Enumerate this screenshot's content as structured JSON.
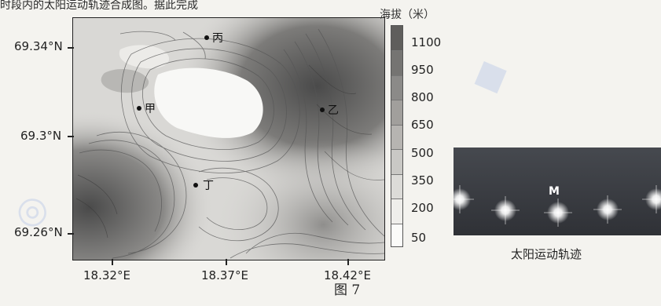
{
  "header_text": "时段内的太阳运动轨迹合成图。据此完成",
  "map": {
    "lat_labels": [
      "69.34°N",
      "69.3°N",
      "69.26°N"
    ],
    "lon_labels": [
      "18.32°E",
      "18.37°E",
      "18.42°E"
    ],
    "places": [
      {
        "name": "丙"
      },
      {
        "name": "甲"
      },
      {
        "name": "乙"
      },
      {
        "name": "丁"
      }
    ]
  },
  "legend": {
    "title": "海拔（米）",
    "values": [
      "1100",
      "950",
      "800",
      "650",
      "500",
      "350",
      "200",
      "50"
    ],
    "bands": [
      "#5f5e5c",
      "#757472",
      "#8b8a88",
      "#a19f9c",
      "#b6b4b1",
      "#c9c8c5",
      "#dcdbd8",
      "#efeeeb",
      "#fbfbf9"
    ]
  },
  "sun_panel": {
    "label": "M",
    "caption": "太阳运动轨迹"
  },
  "figure_label": "图 7",
  "colors": {
    "sun_panel_bg": "#3d4047",
    "map_high": "#4f4f4f",
    "map_low": "#f7f7f5",
    "watermark": "#b9c9e8"
  }
}
